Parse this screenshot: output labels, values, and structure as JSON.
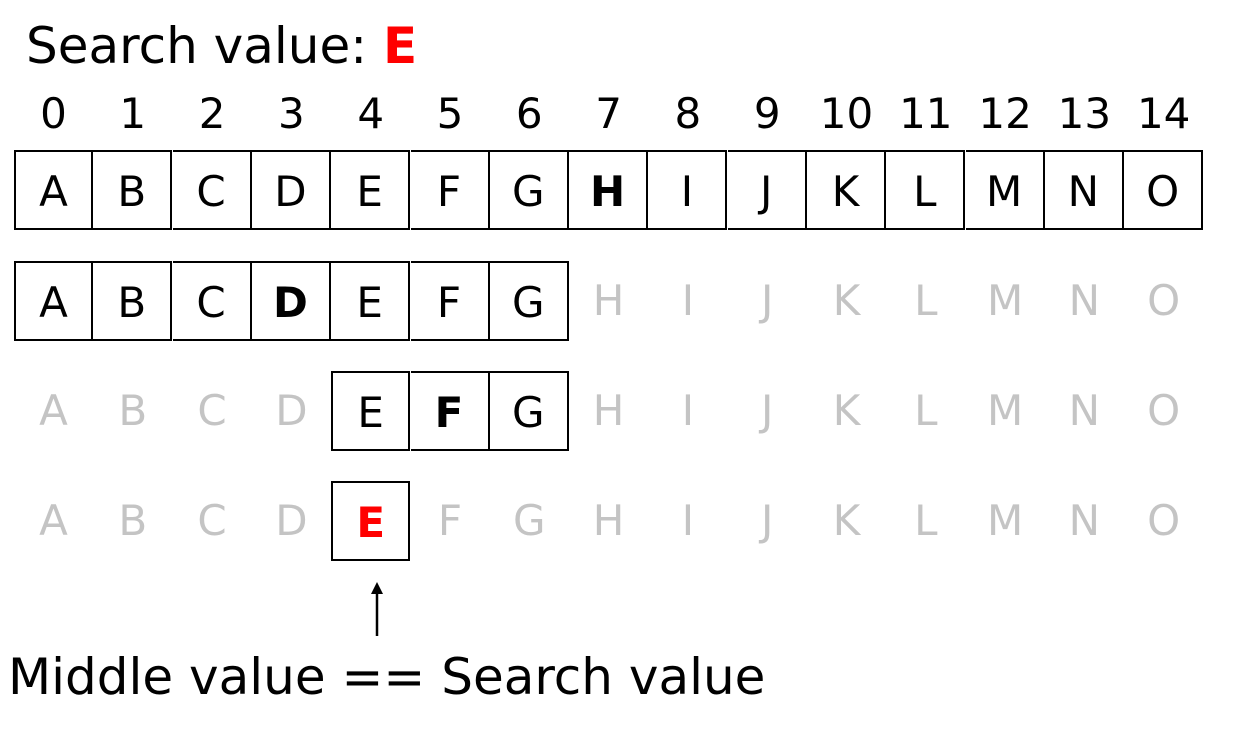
{
  "title": {
    "label": "Search value:",
    "value": "E"
  },
  "indices": [
    "0",
    "1",
    "2",
    "3",
    "4",
    "5",
    "6",
    "7",
    "8",
    "9",
    "10",
    "11",
    "12",
    "13",
    "14"
  ],
  "letters": [
    "A",
    "B",
    "C",
    "D",
    "E",
    "F",
    "G",
    "H",
    "I",
    "J",
    "K",
    "L",
    "M",
    "N",
    "O"
  ],
  "steps": [
    {
      "range": [
        0,
        14
      ],
      "middle": 7
    },
    {
      "range": [
        0,
        6
      ],
      "middle": 3
    },
    {
      "range": [
        4,
        6
      ],
      "middle": 5
    },
    {
      "range": [
        4,
        4
      ],
      "middle": 4,
      "found": true
    }
  ],
  "caption": "Middle value == Search value",
  "colors": {
    "found": "#ff0000",
    "faded": "#c4c4c4",
    "active": "#000000"
  }
}
